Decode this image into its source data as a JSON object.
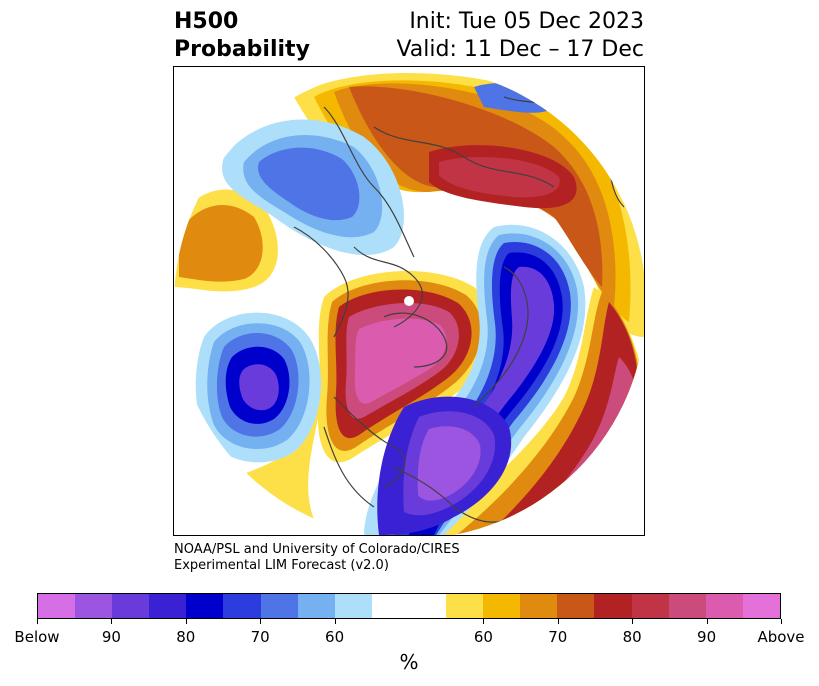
{
  "title": {
    "left_line1": "H500",
    "left_line2": "Probability",
    "right_line1": "Init: Tue 05 Dec 2023",
    "right_line2": "Valid: 11 Dec – 17 Dec"
  },
  "credit": {
    "line1": "NOAA/PSL and University of Colorado/CIRES",
    "line2": "Experimental LIM Forecast (v2.0)"
  },
  "colorbar": {
    "colors": [
      "#d66fe6",
      "#9b55e0",
      "#6a3bdb",
      "#3a22d4",
      "#0000cc",
      "#2b3ddd",
      "#4f74e6",
      "#75b1f1",
      "#aedffa",
      "#ffffff",
      "#ffffff",
      "#fde047",
      "#f5b800",
      "#e08a10",
      "#c85718",
      "#b22222",
      "#c03446",
      "#cc4b7d",
      "#db5cae",
      "#e470da"
    ],
    "ticks": [
      "Below",
      "90",
      "80",
      "70",
      "60",
      "60",
      "70",
      "80",
      "90",
      "Above"
    ],
    "units": "%"
  },
  "map": {
    "projection": "north-polar-stereographic",
    "variable": "500 hPa height probability"
  }
}
